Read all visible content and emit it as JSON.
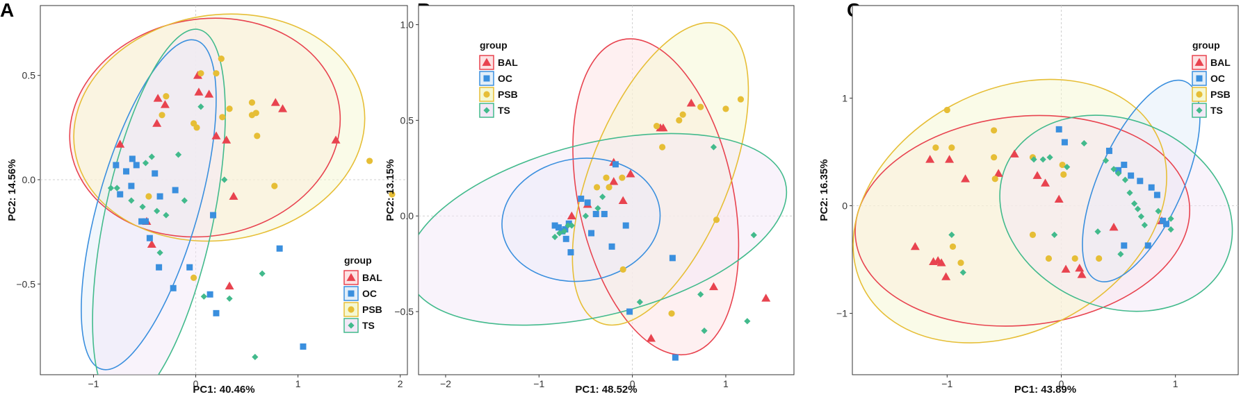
{
  "colors": {
    "BAL": "#e8434f",
    "OC": "#3a8fde",
    "PSB": "#e6be36",
    "TS": "#42ba8c"
  },
  "ellipse_fill_colors": {
    "BAL": "#fde2e3",
    "OC": "#e2eef9",
    "PSB": "#f5f8d2",
    "TS": "#f3e8f7"
  },
  "chart_data": [
    {
      "type": "scatter",
      "panel": "A",
      "xlabel": "PC1: 40.46%",
      "ylabel": "PC2: 14.56%",
      "xlim": [
        -1.52,
        2.07
      ],
      "ylim": [
        -0.935,
        0.835
      ],
      "xticks": [
        -1,
        0,
        1,
        2
      ],
      "yticks": [
        -0.5,
        0.0,
        0.5
      ],
      "ytick_labels": [
        "−0.5",
        "0.0",
        "0.5"
      ],
      "xtick_labels": [
        "−1",
        "0",
        "1",
        "2"
      ],
      "legend": {
        "title": "group",
        "position": "bottom-right",
        "entries": [
          "BAL",
          "OC",
          "PSB",
          "TS"
        ]
      },
      "ellipses": [
        {
          "group": "BAL",
          "cx": 0.09,
          "cy": 0.25,
          "rx": 1.33,
          "ry": 0.52,
          "angle": -10
        },
        {
          "group": "PSB",
          "cx": 0.23,
          "cy": 0.25,
          "rx": 1.43,
          "ry": 0.54,
          "angle": -9
        },
        {
          "group": "OC",
          "cx": -0.46,
          "cy": -0.12,
          "rx": 0.49,
          "ry": 0.82,
          "angle": 16
        },
        {
          "group": "TS",
          "cx": -0.36,
          "cy": -0.18,
          "rx": 0.53,
          "ry": 0.92,
          "angle": 12
        }
      ],
      "series": [
        {
          "name": "BAL",
          "points": [
            [
              -0.74,
              0.17
            ],
            [
              -0.48,
              -0.2
            ],
            [
              -0.43,
              -0.31
            ],
            [
              -0.38,
              0.27
            ],
            [
              -0.37,
              0.39
            ],
            [
              -0.3,
              0.36
            ],
            [
              0.02,
              0.5
            ],
            [
              0.03,
              0.42
            ],
            [
              0.13,
              0.41
            ],
            [
              0.2,
              0.21
            ],
            [
              0.3,
              0.19
            ],
            [
              0.37,
              -0.08
            ],
            [
              0.33,
              -0.51
            ],
            [
              0.78,
              0.37
            ],
            [
              0.85,
              0.34
            ],
            [
              1.37,
              0.19
            ]
          ]
        },
        {
          "name": "OC",
          "points": [
            [
              -0.78,
              0.07
            ],
            [
              -0.74,
              -0.07
            ],
            [
              -0.68,
              0.04
            ],
            [
              -0.62,
              0.1
            ],
            [
              -0.63,
              -0.03
            ],
            [
              -0.58,
              0.07
            ],
            [
              -0.53,
              -0.2
            ],
            [
              -0.49,
              -0.2
            ],
            [
              -0.45,
              -0.28
            ],
            [
              -0.4,
              0.03
            ],
            [
              -0.35,
              -0.08
            ],
            [
              -0.36,
              -0.42
            ],
            [
              -0.2,
              -0.05
            ],
            [
              -0.22,
              -0.52
            ],
            [
              -0.06,
              -0.42
            ],
            [
              0.14,
              -0.55
            ],
            [
              0.2,
              -0.64
            ],
            [
              0.17,
              -0.17
            ],
            [
              0.82,
              -0.33
            ],
            [
              1.05,
              -0.8
            ]
          ]
        },
        {
          "name": "PSB",
          "points": [
            [
              -0.46,
              -0.08
            ],
            [
              -0.33,
              0.31
            ],
            [
              -0.29,
              0.4
            ],
            [
              -0.02,
              -0.47
            ],
            [
              -0.02,
              0.27
            ],
            [
              0.01,
              0.25
            ],
            [
              0.05,
              0.51
            ],
            [
              0.2,
              0.51
            ],
            [
              0.25,
              0.58
            ],
            [
              0.26,
              0.3
            ],
            [
              0.33,
              0.34
            ],
            [
              0.55,
              0.37
            ],
            [
              0.55,
              0.31
            ],
            [
              0.59,
              0.32
            ],
            [
              0.6,
              0.21
            ],
            [
              0.77,
              -0.03
            ],
            [
              1.7,
              0.09
            ],
            [
              1.92,
              -0.07
            ]
          ]
        },
        {
          "name": "TS",
          "points": [
            [
              -0.83,
              -0.04
            ],
            [
              -0.77,
              -0.04
            ],
            [
              -0.63,
              -0.1
            ],
            [
              -0.52,
              -0.13
            ],
            [
              -0.49,
              0.08
            ],
            [
              -0.43,
              0.11
            ],
            [
              -0.38,
              -0.15
            ],
            [
              -0.35,
              -0.35
            ],
            [
              -0.29,
              -0.17
            ],
            [
              -0.17,
              0.12
            ],
            [
              -0.11,
              -0.1
            ],
            [
              0.05,
              0.35
            ],
            [
              0.08,
              -0.56
            ],
            [
              0.28,
              0.0
            ],
            [
              0.33,
              -0.57
            ],
            [
              0.58,
              -0.85
            ],
            [
              0.65,
              -0.45
            ]
          ]
        }
      ]
    },
    {
      "type": "scatter",
      "panel": "B",
      "xlabel": "PC1: 48.52%",
      "ylabel": "PC2: 13.15%",
      "xlim": [
        -2.29,
        1.73
      ],
      "ylim": [
        -0.83,
        1.1
      ],
      "xticks": [
        -2,
        -1,
        0,
        1
      ],
      "yticks": [
        -0.5,
        0.0,
        0.5,
        1.0
      ],
      "ytick_labels": [
        "−0.5",
        "0.0",
        "0.5",
        "1.0"
      ],
      "xtick_labels": [
        "−2",
        "−1",
        "0",
        "1"
      ],
      "legend": {
        "title": "group",
        "position": "top-left",
        "entries": [
          "BAL",
          "OC",
          "PSB",
          "TS"
        ]
      },
      "ellipses": [
        {
          "group": "BAL",
          "cx": 0.25,
          "cy": 0.1,
          "rx": 0.83,
          "ry": 0.84,
          "angle": -12
        },
        {
          "group": "PSB",
          "cx": 0.3,
          "cy": 0.22,
          "rx": 0.74,
          "ry": 0.84,
          "angle": 22
        },
        {
          "group": "OC",
          "cx": -0.55,
          "cy": -0.02,
          "rx": 0.85,
          "ry": 0.32,
          "angle": -8
        },
        {
          "group": "TS",
          "cx": -0.38,
          "cy": -0.07,
          "rx": 2.08,
          "ry": 0.45,
          "angle": -14
        }
      ],
      "series": [
        {
          "name": "BAL",
          "points": [
            [
              -0.65,
              0.0
            ],
            [
              -0.48,
              0.06
            ],
            [
              -0.2,
              0.18
            ],
            [
              -0.2,
              0.28
            ],
            [
              -0.1,
              0.08
            ],
            [
              -0.02,
              0.22
            ],
            [
              0.3,
              0.46
            ],
            [
              0.33,
              0.46
            ],
            [
              0.63,
              0.59
            ],
            [
              0.2,
              -0.64
            ],
            [
              0.87,
              -0.37
            ],
            [
              1.43,
              -0.43
            ]
          ]
        },
        {
          "name": "OC",
          "points": [
            [
              -0.83,
              -0.05
            ],
            [
              -0.79,
              -0.06
            ],
            [
              -0.75,
              -0.08
            ],
            [
              -0.72,
              -0.07
            ],
            [
              -0.68,
              -0.04
            ],
            [
              -0.71,
              -0.12
            ],
            [
              -0.66,
              -0.19
            ],
            [
              -0.55,
              0.09
            ],
            [
              -0.48,
              0.07
            ],
            [
              -0.44,
              -0.09
            ],
            [
              -0.39,
              0.01
            ],
            [
              -0.3,
              0.01
            ],
            [
              -0.22,
              -0.16
            ],
            [
              -0.18,
              0.27
            ],
            [
              -0.07,
              -0.05
            ],
            [
              0.43,
              -0.22
            ],
            [
              0.46,
              -0.74
            ],
            [
              -0.03,
              -0.5
            ]
          ]
        },
        {
          "name": "PSB",
          "points": [
            [
              -0.38,
              0.15
            ],
            [
              -0.28,
              0.2
            ],
            [
              -0.25,
              0.15
            ],
            [
              -0.11,
              0.2
            ],
            [
              -0.1,
              -0.28
            ],
            [
              0.26,
              0.47
            ],
            [
              0.32,
              0.36
            ],
            [
              0.5,
              0.5
            ],
            [
              0.54,
              0.53
            ],
            [
              0.73,
              0.57
            ],
            [
              0.9,
              -0.02
            ],
            [
              1.0,
              0.56
            ],
            [
              1.16,
              0.61
            ],
            [
              0.42,
              -0.51
            ]
          ]
        },
        {
          "name": "TS",
          "points": [
            [
              -0.83,
              -0.11
            ],
            [
              -0.78,
              -0.09
            ],
            [
              -0.73,
              -0.08
            ],
            [
              -0.69,
              -0.05
            ],
            [
              -0.65,
              -0.05
            ],
            [
              -0.5,
              0.0
            ],
            [
              -0.37,
              0.04
            ],
            [
              -0.32,
              0.1
            ],
            [
              0.08,
              -0.45
            ],
            [
              0.73,
              -0.41
            ],
            [
              0.87,
              0.36
            ],
            [
              0.77,
              -0.6
            ],
            [
              1.23,
              -0.55
            ],
            [
              1.3,
              -0.1
            ]
          ]
        }
      ]
    },
    {
      "type": "scatter",
      "panel": "C",
      "xlabel": "PC1: 43.89%",
      "ylabel": "PC2: 16.35%",
      "xlim": [
        -1.83,
        1.55
      ],
      "ylim": [
        -1.57,
        1.86
      ],
      "xticks": [
        -1,
        0,
        1
      ],
      "yticks": [
        -1,
        0,
        1
      ],
      "ytick_labels": [
        "−1",
        "0",
        "1"
      ],
      "xtick_labels": [
        "−1",
        "0",
        "1"
      ],
      "legend": {
        "title": "group",
        "position": "top-right",
        "entries": [
          "BAL",
          "OC",
          "PSB",
          "TS"
        ]
      },
      "ellipses": [
        {
          "group": "BAL",
          "cx": -0.34,
          "cy": -0.14,
          "rx": 1.47,
          "ry": 0.97,
          "angle": -6
        },
        {
          "group": "PSB",
          "cx": -0.45,
          "cy": -0.05,
          "rx": 1.45,
          "ry": 1.12,
          "angle": -28
        },
        {
          "group": "OC",
          "cx": 0.7,
          "cy": 0.23,
          "rx": 0.37,
          "ry": 1.01,
          "angle": 24
        },
        {
          "group": "TS",
          "cx": 0.48,
          "cy": -0.07,
          "rx": 1.05,
          "ry": 0.87,
          "angle": 23
        }
      ],
      "series": [
        {
          "name": "BAL",
          "points": [
            [
              -1.15,
              0.43
            ],
            [
              -0.98,
              0.43
            ],
            [
              -0.84,
              0.25
            ],
            [
              -0.55,
              0.3
            ],
            [
              -0.41,
              0.48
            ],
            [
              -0.21,
              0.28
            ],
            [
              -0.14,
              0.21
            ],
            [
              -0.02,
              0.06
            ],
            [
              -1.28,
              -0.38
            ],
            [
              -1.12,
              -0.52
            ],
            [
              -1.08,
              -0.51
            ],
            [
              -1.05,
              -0.53
            ],
            [
              -1.01,
              -0.66
            ],
            [
              0.04,
              -0.59
            ],
            [
              0.16,
              -0.58
            ],
            [
              0.18,
              -0.64
            ],
            [
              0.46,
              -0.2
            ],
            [
              0.88,
              -0.14
            ]
          ]
        },
        {
          "name": "OC",
          "points": [
            [
              -0.02,
              0.71
            ],
            [
              0.03,
              0.59
            ],
            [
              0.42,
              0.51
            ],
            [
              0.5,
              0.33
            ],
            [
              0.55,
              0.38
            ],
            [
              0.61,
              0.28
            ],
            [
              0.69,
              0.23
            ],
            [
              0.79,
              0.17
            ],
            [
              0.84,
              0.1
            ],
            [
              0.89,
              -0.14
            ],
            [
              0.92,
              -0.17
            ],
            [
              0.76,
              -0.37
            ],
            [
              0.55,
              -0.37
            ]
          ]
        },
        {
          "name": "PSB",
          "points": [
            [
              -1.1,
              0.54
            ],
            [
              -1.0,
              0.89
            ],
            [
              -0.96,
              0.54
            ],
            [
              -0.59,
              0.7
            ],
            [
              -0.59,
              0.45
            ],
            [
              -0.58,
              0.25
            ],
            [
              -0.25,
              0.45
            ],
            [
              0.01,
              0.38
            ],
            [
              0.02,
              0.29
            ],
            [
              -0.95,
              -0.38
            ],
            [
              -0.88,
              -0.53
            ],
            [
              -0.25,
              -0.27
            ],
            [
              -0.11,
              -0.49
            ],
            [
              0.12,
              -0.49
            ],
            [
              0.33,
              -0.49
            ]
          ]
        },
        {
          "name": "TS",
          "points": [
            [
              -0.24,
              0.43
            ],
            [
              -0.16,
              0.43
            ],
            [
              -0.1,
              0.45
            ],
            [
              0.05,
              0.36
            ],
            [
              0.2,
              0.58
            ],
            [
              0.39,
              0.42
            ],
            [
              0.46,
              0.34
            ],
            [
              0.5,
              0.3
            ],
            [
              0.56,
              0.24
            ],
            [
              0.6,
              0.12
            ],
            [
              0.64,
              0.02
            ],
            [
              0.67,
              -0.03
            ],
            [
              0.7,
              -0.1
            ],
            [
              0.73,
              -0.18
            ],
            [
              0.85,
              -0.05
            ],
            [
              0.96,
              -0.12
            ],
            [
              0.96,
              -0.22
            ],
            [
              -0.96,
              -0.27
            ],
            [
              -0.86,
              -0.62
            ],
            [
              -0.06,
              -0.27
            ],
            [
              0.32,
              -0.24
            ],
            [
              0.52,
              -0.45
            ]
          ]
        }
      ]
    }
  ]
}
